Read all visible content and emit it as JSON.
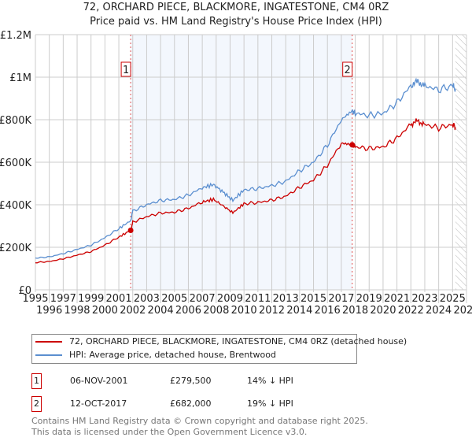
{
  "chart_data": {
    "type": "line",
    "title": "72, ORCHARD PIECE, BLACKMORE, INGATESTONE, CM4 0RZ",
    "subtitle": "Price paid vs. HM Land Registry's House Price Index (HPI)",
    "xlim": [
      1995,
      2026
    ],
    "ylim": [
      0,
      1200000
    ],
    "x_ticks": [
      "1995",
      "1996",
      "1997",
      "1998",
      "1999",
      "2000",
      "2001",
      "2002",
      "2003",
      "2004",
      "2005",
      "2006",
      "2007",
      "2008",
      "2009",
      "2010",
      "2011",
      "2012",
      "2013",
      "2014",
      "2015",
      "2016",
      "2017",
      "2018",
      "2019",
      "2020",
      "2021",
      "2022",
      "2023",
      "2024",
      "2025",
      "2026"
    ],
    "y_ticks": [
      {
        "v": 0,
        "label": "£0"
      },
      {
        "v": 200000,
        "label": "£200K"
      },
      {
        "v": 400000,
        "label": "£400K"
      },
      {
        "v": 600000,
        "label": "£600K"
      },
      {
        "v": 800000,
        "label": "£800K"
      },
      {
        "v": 1000000,
        "label": "£1M"
      },
      {
        "v": 1200000,
        "label": "£1.2M"
      }
    ],
    "grid": true,
    "series": [
      {
        "name": "72, ORCHARD PIECE, BLACKMORE, INGATESTONE, CM4 0RZ (detached house)",
        "color": "#cc0000",
        "x": [
          1995,
          1996,
          1997,
          1998,
          1999,
          2000,
          2001,
          2001.85,
          2002,
          2003,
          2004,
          2005,
          2006,
          2007,
          2007.8,
          2008.5,
          2009.2,
          2010,
          2011,
          2012,
          2013,
          2014,
          2015,
          2016,
          2017,
          2017.78,
          2018,
          2019,
          2020,
          2021,
          2022,
          2022.5,
          2023,
          2024,
          2025,
          2025.2
        ],
        "y": [
          128000,
          133000,
          146000,
          163000,
          180000,
          210000,
          248000,
          279500,
          318000,
          344000,
          361000,
          365000,
          383000,
          413000,
          425000,
          395000,
          362000,
          405000,
          410000,
          422000,
          440000,
          482000,
          517000,
          585000,
          690000,
          682000,
          672000,
          664000,
          672000,
          713000,
          778000,
          794000,
          778000,
          761000,
          778000,
          765000
        ]
      },
      {
        "name": "HPI: Average price, detached house, Brentwood",
        "color": "#5b8fd0",
        "x": [
          1995,
          1996,
          1997,
          1998,
          1999,
          2000,
          2001,
          2001.85,
          2002,
          2003,
          2004,
          2005,
          2006,
          2007,
          2007.8,
          2008.5,
          2009.2,
          2010,
          2011,
          2012,
          2013,
          2014,
          2015,
          2016,
          2017,
          2017.78,
          2018,
          2019,
          2020,
          2021,
          2022,
          2022.5,
          2023,
          2024,
          2025,
          2025.2
        ],
        "y": [
          149000,
          155000,
          170000,
          190000,
          210000,
          245000,
          288000,
          325000,
          370000,
          400000,
          420000,
          425000,
          445000,
          480000,
          495000,
          460000,
          420000,
          470000,
          476000,
          490000,
          510000,
          560000,
          600000,
          680000,
          800000,
          842000,
          830000,
          820000,
          830000,
          880000,
          960000,
          980000,
          960000,
          940000,
          960000,
          945000
        ]
      }
    ],
    "annotations": [
      {
        "label": "1",
        "x": 2001.85
      },
      {
        "label": "2",
        "x": 2017.78
      }
    ],
    "shaded_range": [
      2001.85,
      2017.78
    ],
    "hatched_after": 2025.2
  },
  "legend": {
    "items": [
      "72, ORCHARD PIECE, BLACKMORE, INGATESTONE, CM4 0RZ (detached house)",
      "HPI: Average price, detached house, Brentwood"
    ]
  },
  "table": [
    {
      "n": "1",
      "date": "06-NOV-2001",
      "price": "£279,500",
      "hpi": "14% ↓ HPI"
    },
    {
      "n": "2",
      "date": "12-OCT-2017",
      "price": "£682,000",
      "hpi": "19% ↓ HPI"
    }
  ],
  "footer": [
    "Contains HM Land Registry data © Crown copyright and database right 2025.",
    "This data is licensed under the Open Government Licence v3.0."
  ]
}
